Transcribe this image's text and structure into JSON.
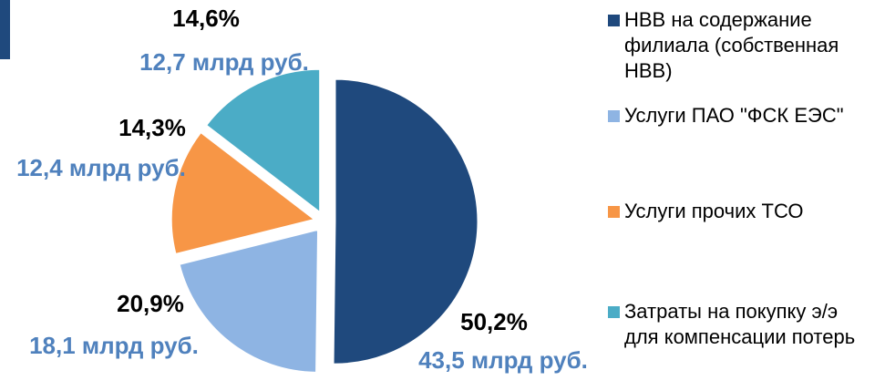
{
  "chart_data": {
    "type": "pie",
    "categories": [
      "НВВ на содержание филиала (собственная НВВ)",
      "Услуги ПАО \"ФСК ЕЭС\"",
      "Услуги прочих ТСО",
      "Затраты на покупку э/э для компенсации потерь"
    ],
    "values": [
      50.2,
      20.9,
      14.3,
      14.6
    ],
    "value_labels": [
      "50,2%",
      "20,9%",
      "14,3%",
      "14,6%"
    ],
    "amounts": [
      43.5,
      18.1,
      12.4,
      12.7
    ],
    "amount_labels": [
      "43,5 млрд руб.",
      "18,1 млрд руб.",
      "12,4 млрд руб.",
      "12,7 млрд руб."
    ],
    "colors": [
      "#1f497d",
      "#8eb4e3",
      "#f79646",
      "#4bacc6"
    ],
    "legend": "right"
  }
}
